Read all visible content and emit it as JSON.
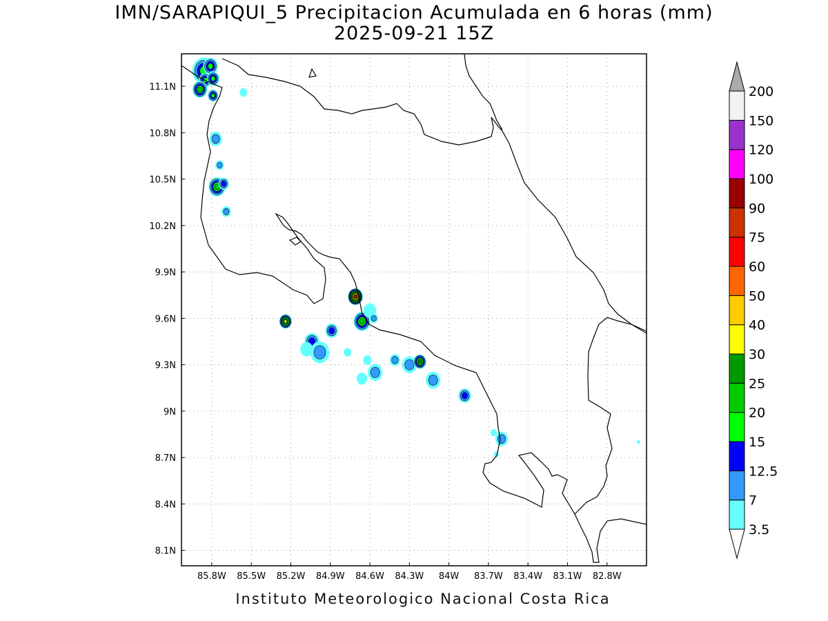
{
  "map": {
    "title": "IMN/SARAPIQUI_5 Precipitacion Acumulada en 6 horas (mm)",
    "subtitle": "2025-09-21 15Z",
    "footer": "Instituto Meteorologico Nacional Costa Rica",
    "lon_range": [
      -86.03,
      -82.5
    ],
    "lat_range": [
      8.0,
      11.31
    ],
    "lon_ticks": [
      -85.8,
      -85.5,
      -85.2,
      -84.9,
      -84.6,
      -84.3,
      -84.0,
      -83.7,
      -83.4,
      -83.1,
      -82.8
    ],
    "lon_tick_labels": [
      "85.8W",
      "85.5W",
      "85.2W",
      "84.9W",
      "84.6W",
      "84.3W",
      "84W",
      "83.7W",
      "83.4W",
      "83.1W",
      "82.8W"
    ],
    "lat_ticks": [
      8.1,
      8.4,
      8.7,
      9.0,
      9.3,
      9.6,
      9.9,
      10.2,
      10.5,
      10.8,
      11.1
    ],
    "lat_tick_labels": [
      "8.1N",
      "8.4N",
      "8.7N",
      "9N",
      "9.3N",
      "9.6N",
      "9.9N",
      "10.2N",
      "10.5N",
      "10.8N",
      "11.1N"
    ],
    "grid": true
  },
  "colorbar": {
    "labels": [
      "3.5",
      "7",
      "12.5",
      "15",
      "20",
      "25",
      "30",
      "40",
      "50",
      "60",
      "75",
      "90",
      "100",
      "120",
      "150",
      "200"
    ],
    "colors": [
      "#ffffff",
      "#66ffff",
      "#3399ff",
      "#0000ff",
      "#00ff00",
      "#00cc00",
      "#009900",
      "#ffff00",
      "#ffcc00",
      "#ff6600",
      "#ff0000",
      "#cc3300",
      "#990000",
      "#ff00ff",
      "#9933cc",
      "#f2f2f2",
      "#aaaaaa"
    ]
  },
  "precip_cells": [
    {
      "lon": -85.86,
      "lat": 11.2,
      "level": 4,
      "r": 0.055
    },
    {
      "lon": -85.81,
      "lat": 11.23,
      "level": 4,
      "r": 0.035
    },
    {
      "lon": -85.85,
      "lat": 11.14,
      "level": 4,
      "r": 0.03
    },
    {
      "lon": -85.79,
      "lat": 11.15,
      "level": 4,
      "r": 0.03
    },
    {
      "lon": -85.89,
      "lat": 11.08,
      "level": 5,
      "r": 0.035
    },
    {
      "lon": -85.79,
      "lat": 11.04,
      "level": 4,
      "r": 0.025
    },
    {
      "lon": -85.56,
      "lat": 11.06,
      "level": 1,
      "r": 0.018
    },
    {
      "lon": -85.77,
      "lat": 10.76,
      "level": 2,
      "r": 0.03
    },
    {
      "lon": -85.74,
      "lat": 10.59,
      "level": 2,
      "r": 0.02
    },
    {
      "lon": -85.76,
      "lat": 10.45,
      "level": 5,
      "r": 0.04
    },
    {
      "lon": -85.71,
      "lat": 10.47,
      "level": 3,
      "r": 0.025
    },
    {
      "lon": -85.69,
      "lat": 10.29,
      "level": 2,
      "r": 0.022
    },
    {
      "lon": -85.24,
      "lat": 9.58,
      "level": 7,
      "r": 0.03
    },
    {
      "lon": -84.71,
      "lat": 9.74,
      "level": 10,
      "r": 0.035
    },
    {
      "lon": -84.66,
      "lat": 9.58,
      "level": 5,
      "r": 0.04
    },
    {
      "lon": -84.6,
      "lat": 9.65,
      "level": 1,
      "r": 0.03
    },
    {
      "lon": -84.57,
      "lat": 9.6,
      "level": 2,
      "r": 0.02
    },
    {
      "lon": -84.89,
      "lat": 9.52,
      "level": 3,
      "r": 0.03
    },
    {
      "lon": -85.04,
      "lat": 9.45,
      "level": 3,
      "r": 0.035
    },
    {
      "lon": -84.98,
      "lat": 9.38,
      "level": 2,
      "r": 0.045
    },
    {
      "lon": -85.08,
      "lat": 9.4,
      "level": 1,
      "r": 0.03
    },
    {
      "lon": -84.77,
      "lat": 9.38,
      "level": 1,
      "r": 0.018
    },
    {
      "lon": -84.62,
      "lat": 9.33,
      "level": 1,
      "r": 0.02
    },
    {
      "lon": -84.56,
      "lat": 9.25,
      "level": 2,
      "r": 0.035
    },
    {
      "lon": -84.41,
      "lat": 9.33,
      "level": 2,
      "r": 0.025
    },
    {
      "lon": -84.3,
      "lat": 9.3,
      "level": 2,
      "r": 0.035
    },
    {
      "lon": -84.22,
      "lat": 9.32,
      "level": 6,
      "r": 0.03
    },
    {
      "lon": -84.66,
      "lat": 9.21,
      "level": 1,
      "r": 0.025
    },
    {
      "lon": -84.12,
      "lat": 9.2,
      "level": 2,
      "r": 0.035
    },
    {
      "lon": -83.88,
      "lat": 9.1,
      "level": 3,
      "r": 0.03
    },
    {
      "lon": -83.6,
      "lat": 8.82,
      "level": 2,
      "r": 0.03
    },
    {
      "lon": -83.66,
      "lat": 8.86,
      "level": 1,
      "r": 0.015
    },
    {
      "lon": -83.64,
      "lat": 8.72,
      "level": 1,
      "r": 0.012
    },
    {
      "lon": -82.56,
      "lat": 8.8,
      "level": 1,
      "r": 0.008
    }
  ]
}
